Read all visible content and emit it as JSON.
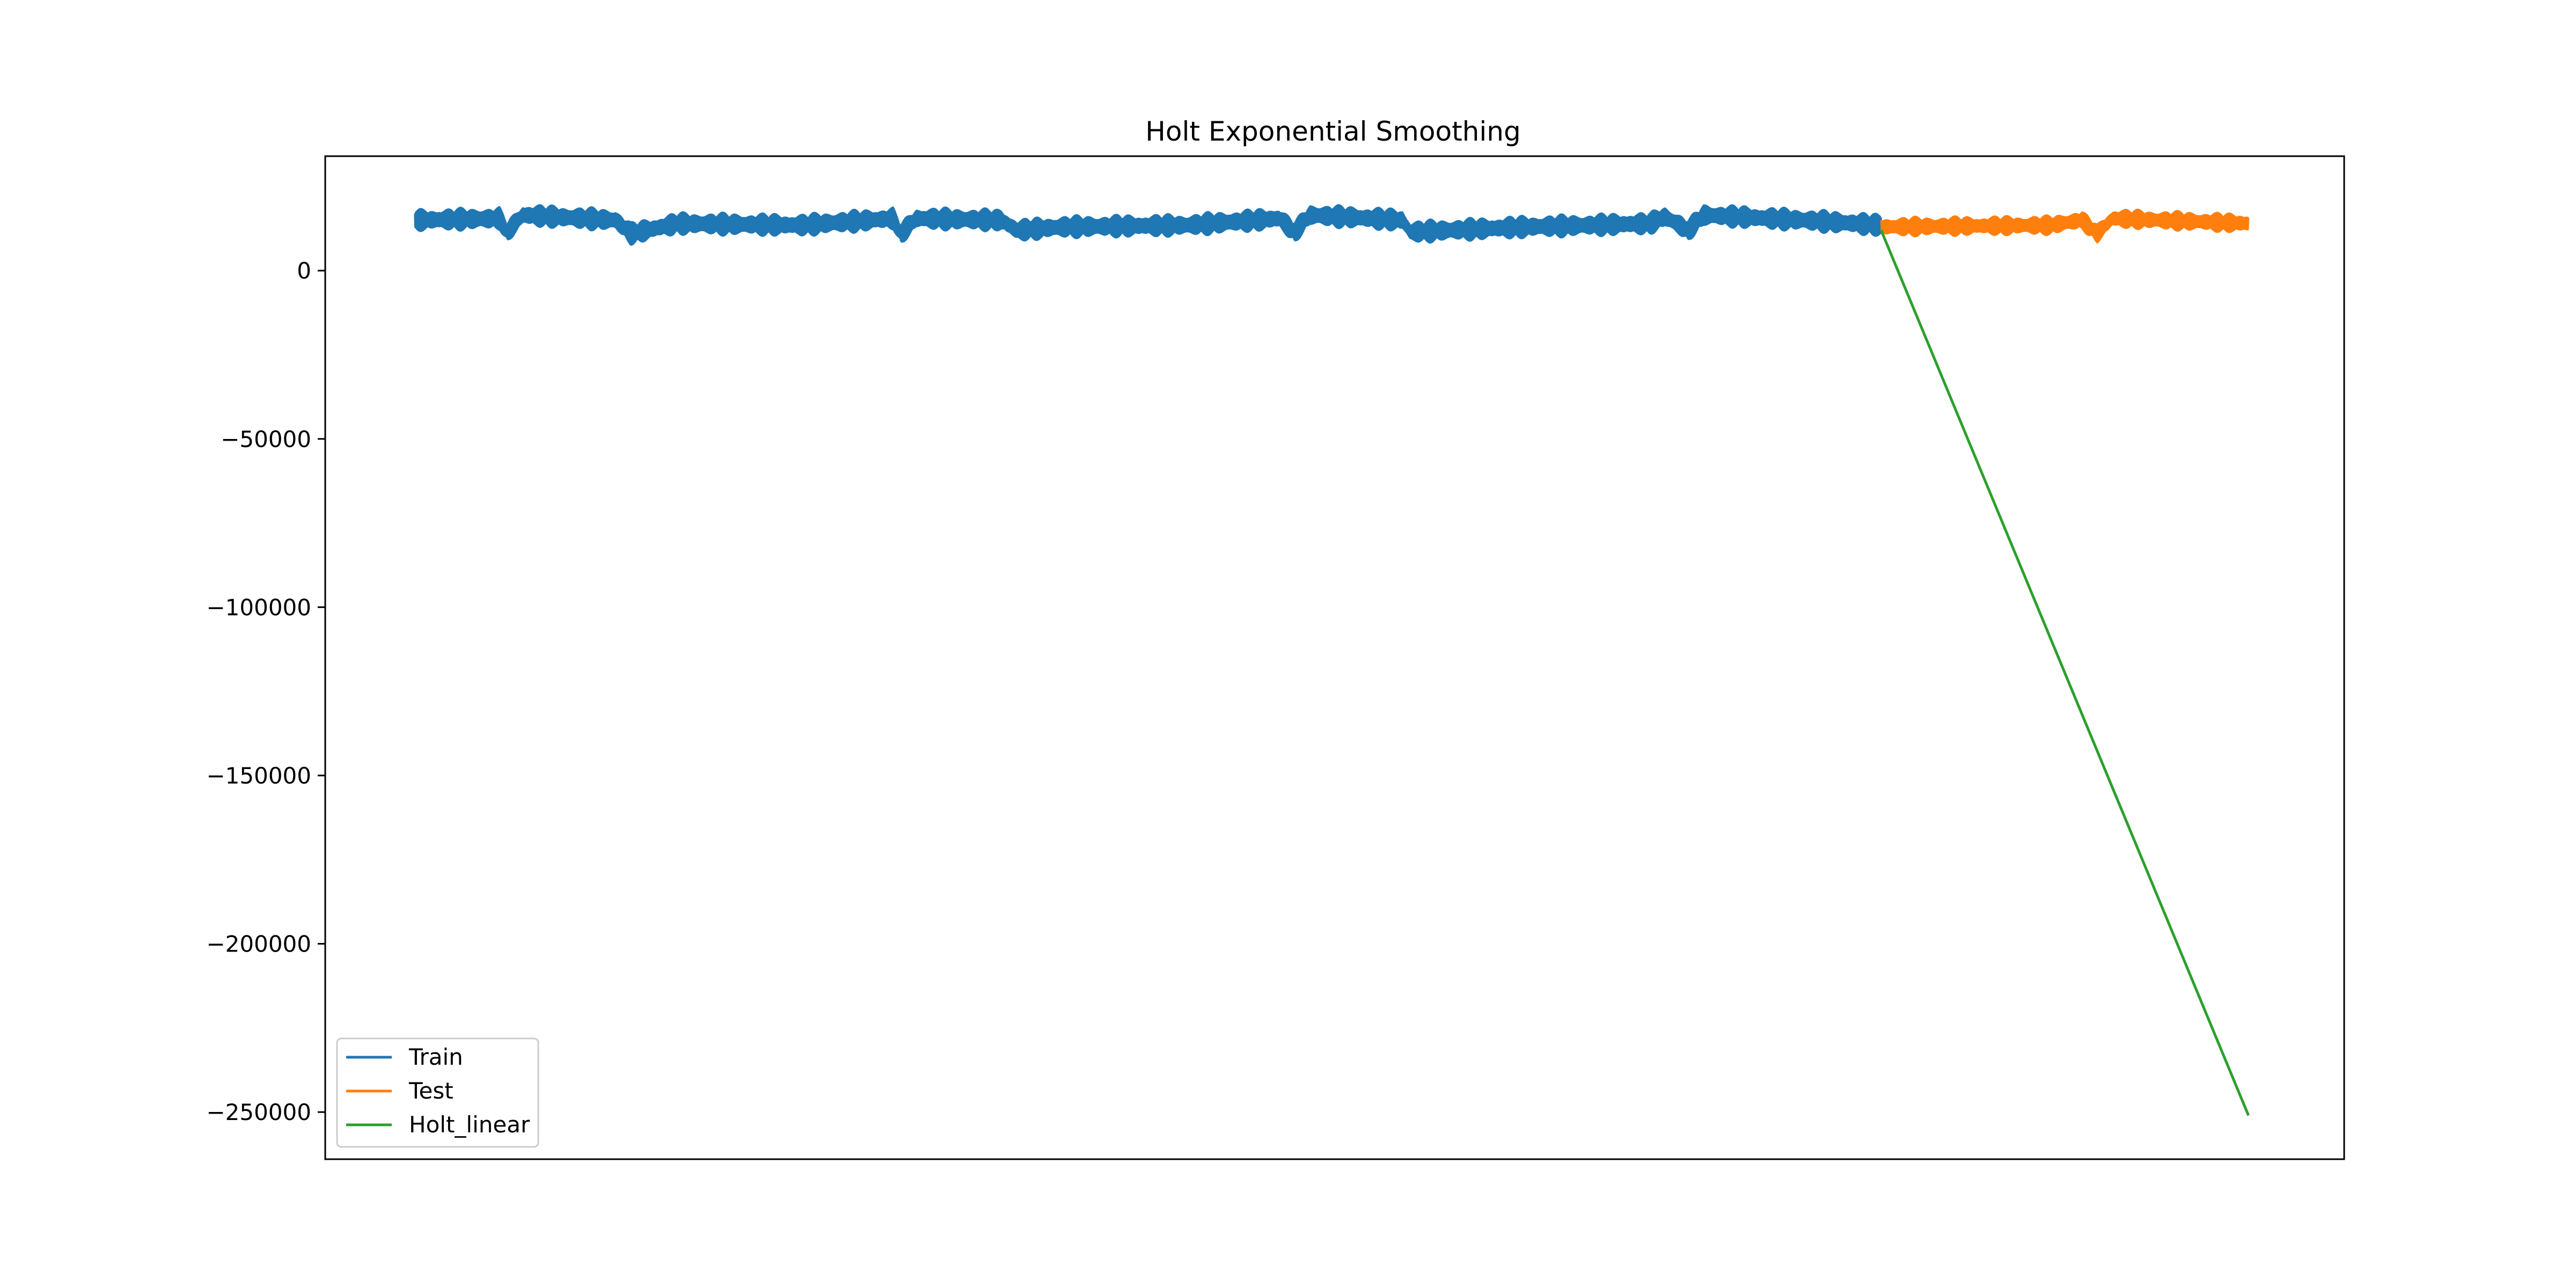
{
  "chart_data": {
    "type": "line",
    "title": "Holt Exponential Smoothing",
    "xlabel": "",
    "ylabel": "",
    "xlim": [
      -58,
      1250
    ],
    "ylim": [
      -264000,
      34000
    ],
    "y_ticks": [
      0,
      -50000,
      -100000,
      -150000,
      -200000,
      -250000
    ],
    "y_tick_labels": [
      "0",
      "−50000",
      "−100000",
      "−150000",
      "−200000",
      "−250000"
    ],
    "x_tick_labels": [],
    "grid": false,
    "legend_position": "lower-left",
    "colors": {
      "train": "#1f77b4",
      "test": "#ff7f0e",
      "holt": "#2ca02c"
    },
    "series": [
      {
        "name": "Train",
        "x_range": [
          0,
          950
        ],
        "level_profile": [
          [
            0,
            15000
          ],
          [
            55,
            15500
          ],
          [
            60,
            11500
          ],
          [
            70,
            16500
          ],
          [
            130,
            15000
          ],
          [
            140,
            11000
          ],
          [
            170,
            14000
          ],
          [
            250,
            13500
          ],
          [
            310,
            15500
          ],
          [
            315,
            11000
          ],
          [
            325,
            15500
          ],
          [
            380,
            15000
          ],
          [
            390,
            12000
          ],
          [
            420,
            13000
          ],
          [
            500,
            13500
          ],
          [
            560,
            15500
          ],
          [
            570,
            11500
          ],
          [
            580,
            16500
          ],
          [
            640,
            15000
          ],
          [
            645,
            11500
          ],
          [
            720,
            13000
          ],
          [
            800,
            14000
          ],
          [
            810,
            16000
          ],
          [
            825,
            12000
          ],
          [
            835,
            16500
          ],
          [
            900,
            15000
          ],
          [
            950,
            13500
          ]
        ],
        "amplitude": 3500
      },
      {
        "name": "Test",
        "x_range": [
          950,
          1188
        ],
        "level_profile": [
          [
            950,
            13000
          ],
          [
            1060,
            13500
          ],
          [
            1080,
            15000
          ],
          [
            1090,
            11000
          ],
          [
            1100,
            15500
          ],
          [
            1188,
            14000
          ]
        ],
        "amplitude": 3000
      },
      {
        "name": "Holt_linear",
        "x": [
          950,
          1188
        ],
        "y": [
          12000,
          -251000
        ]
      }
    ]
  }
}
